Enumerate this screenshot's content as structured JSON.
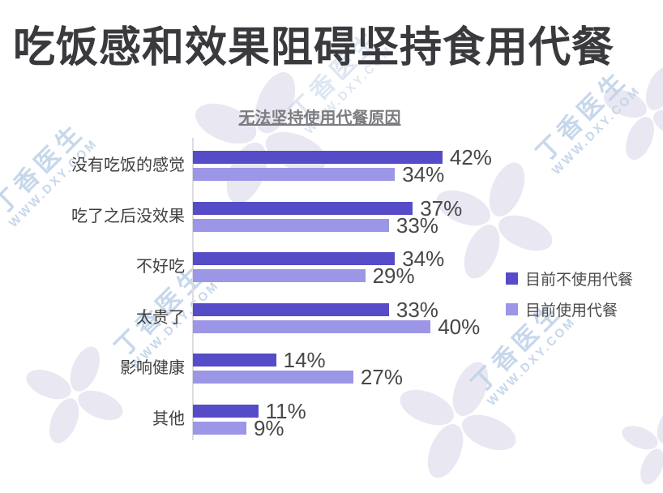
{
  "page": {
    "title": "吃饭感和效果阻碍坚持食用代餐"
  },
  "chart_data": {
    "type": "bar",
    "orientation": "horizontal",
    "title": "无法坚持使用代餐原因",
    "categories": [
      "没有吃饭的感觉",
      "吃了之后没效果",
      "不好吃",
      "太贵了",
      "影响健康",
      "其他"
    ],
    "series": [
      {
        "name": "目前不使用代餐",
        "color": "#564cc8",
        "values": [
          42,
          37,
          34,
          33,
          14,
          11
        ]
      },
      {
        "name": "目前使用代餐",
        "color": "#9c96e7",
        "values": [
          34,
          33,
          29,
          40,
          27,
          9
        ]
      }
    ],
    "value_suffix": "%",
    "xlim": [
      0,
      45
    ],
    "grid": false,
    "legend_position": "right",
    "value_labels_shown": true
  },
  "watermark": {
    "brand": "丁香医生",
    "url": "WWW.DXY.COM",
    "text_color": "#c2d3e9",
    "flower_color": "#e9e8f2"
  }
}
